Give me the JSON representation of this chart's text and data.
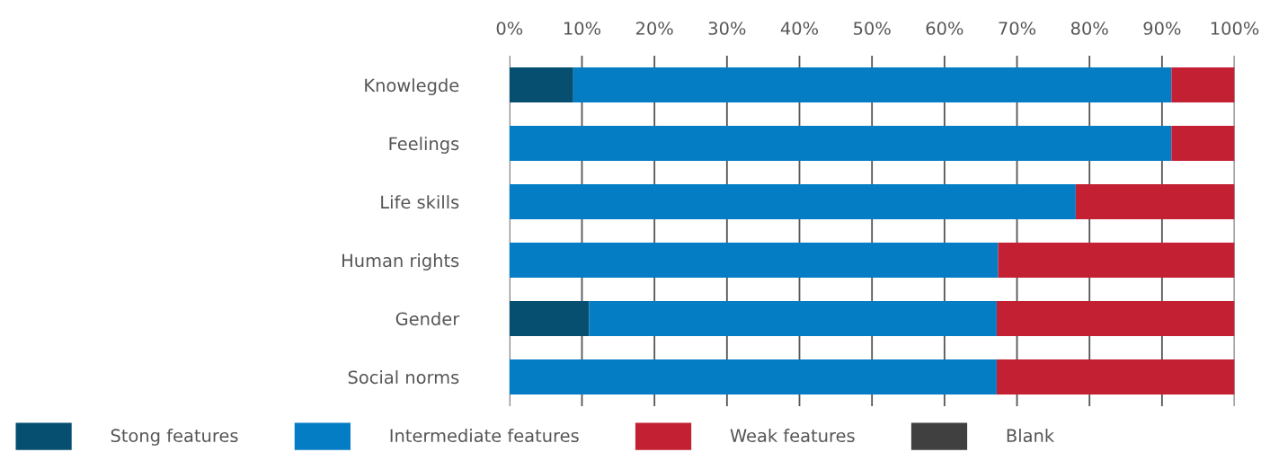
{
  "chart_data": {
    "type": "bar",
    "orientation": "horizontal",
    "stacked": true,
    "categories": [
      "Knowlegde",
      "Feelings",
      "Life skills",
      "Human rights",
      "Gender",
      "Social norms"
    ],
    "series": [
      {
        "name": "Stong features",
        "color": "#074f71",
        "values": [
          8.8,
          0,
          0,
          0,
          11.0,
          0
        ]
      },
      {
        "name": "Intermediate features",
        "color": "#047dc5",
        "values": [
          82.5,
          91.3,
          78.1,
          67.4,
          56.2,
          67.2
        ]
      },
      {
        "name": "Weak features",
        "color": "#c32033",
        "values": [
          8.7,
          8.7,
          21.9,
          32.6,
          32.8,
          32.8
        ]
      },
      {
        "name": "Blank",
        "color": "#404041",
        "values": [
          0,
          0,
          0,
          0,
          0,
          0
        ]
      }
    ],
    "xlim": [
      0,
      100
    ],
    "xticks": [
      {
        "value": 0,
        "label": "0%"
      },
      {
        "value": 10,
        "label": "10%"
      },
      {
        "value": 20,
        "label": "20%"
      },
      {
        "value": 30,
        "label": "30%"
      },
      {
        "value": 40,
        "label": "40%"
      },
      {
        "value": 50,
        "label": "50%"
      },
      {
        "value": 60,
        "label": "60%"
      },
      {
        "value": 70,
        "label": "70%"
      },
      {
        "value": 80,
        "label": "80%"
      },
      {
        "value": 90,
        "label": "90%"
      },
      {
        "value": 100,
        "label": "100%"
      }
    ],
    "grid": "x",
    "legend": "bottom"
  }
}
